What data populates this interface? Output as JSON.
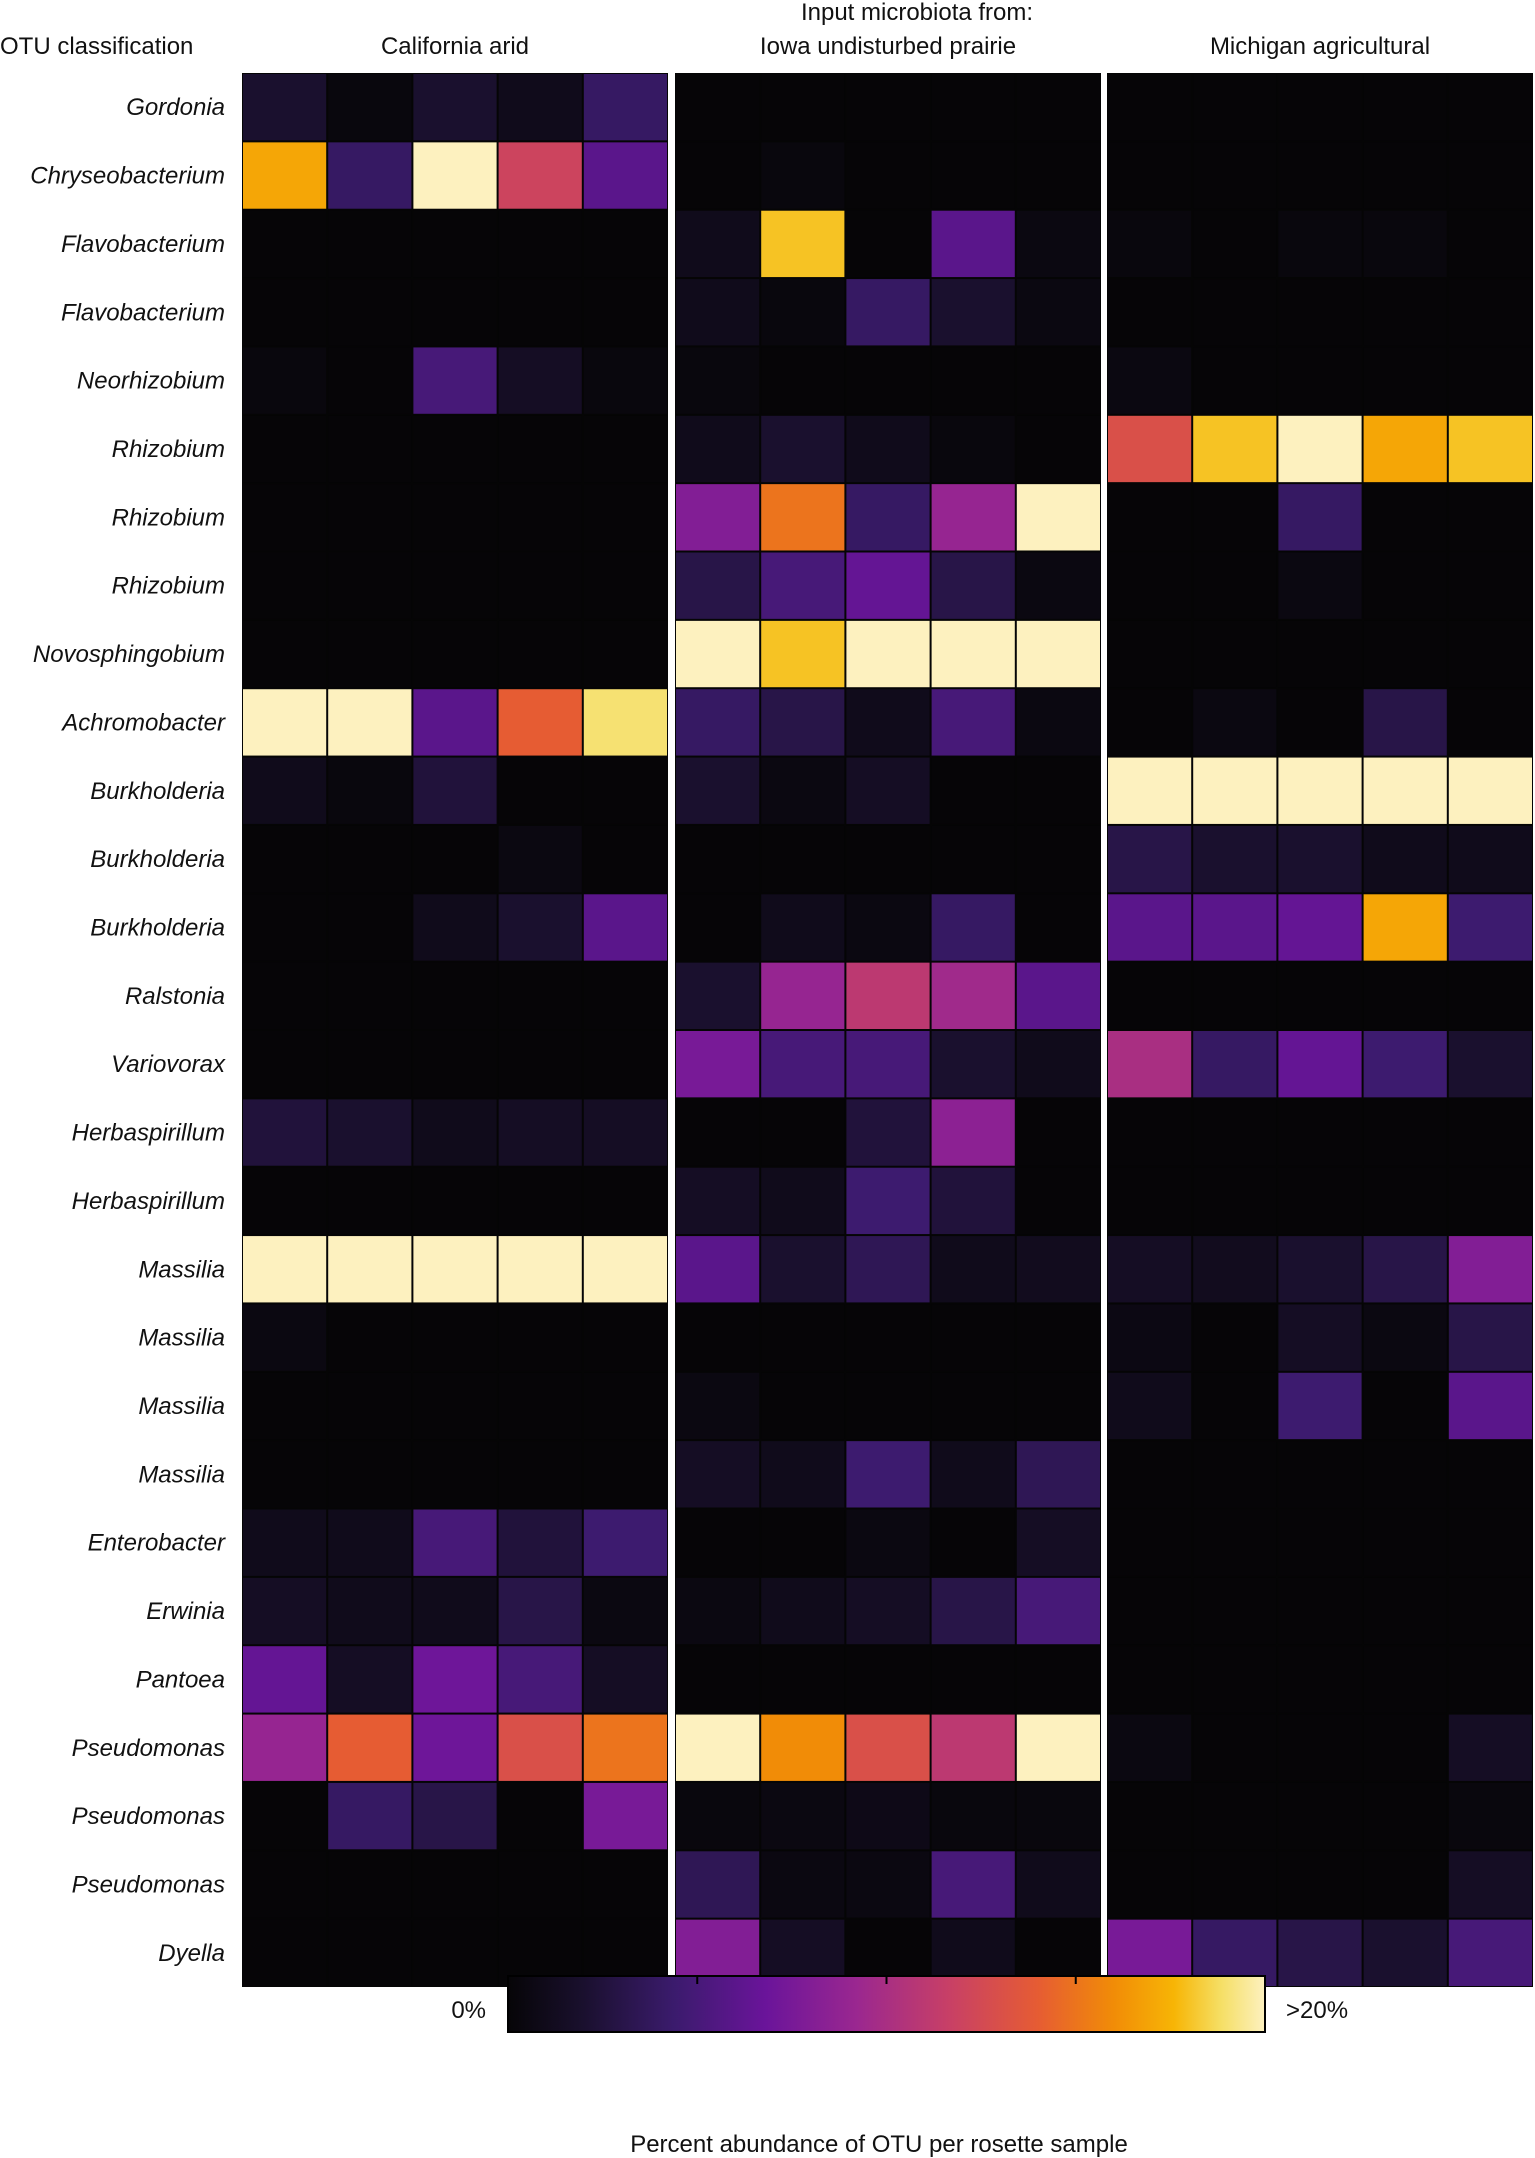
{
  "chart_data": {
    "type": "heatmap",
    "row_header": "OTU classification",
    "panel_superheader": "Input microbiota from:",
    "panels": [
      "California arid",
      "Iowa undisturbed prairie",
      "Michigan agricultural"
    ],
    "samples_per_panel": 5,
    "rows": [
      "Gordonia",
      "Chryseobacterium",
      "Flavobacterium",
      "Flavobacterium",
      "Neorhizobium",
      "Rhizobium",
      "Rhizobium",
      "Rhizobium",
      "Novosphingobium",
      "Achromobacter",
      "Burkholderia",
      "Burkholderia",
      "Burkholderia",
      "Ralstonia",
      "Variovorax",
      "Herbaspirillum",
      "Herbaspirillum",
      "Massilia",
      "Massilia",
      "Massilia",
      "Massilia",
      "Enterobacter",
      "Erwinia",
      "Pantoea",
      "Pseudomonas",
      "Pseudomonas",
      "Pseudomonas",
      "Dyella"
    ],
    "value_unit": "percent",
    "value_max_label": ">20%",
    "value_range": [
      0,
      20
    ],
    "values": [
      [
        [
          2,
          0.3,
          2,
          1,
          4
        ],
        [
          0,
          0,
          0,
          0,
          0
        ],
        [
          0,
          0,
          0,
          0,
          0
        ]
      ],
      [
        [
          17,
          4,
          20,
          12,
          6
        ],
        [
          0,
          0.3,
          0,
          0,
          0
        ],
        [
          0,
          0,
          0,
          0,
          0
        ]
      ],
      [
        [
          0,
          0,
          0,
          0,
          0
        ],
        [
          1,
          18,
          0,
          6,
          0.5
        ],
        [
          0.3,
          0,
          0.3,
          0.3,
          0
        ]
      ],
      [
        [
          0,
          0,
          0,
          0,
          0
        ],
        [
          1,
          0.3,
          4,
          2,
          0.5
        ],
        [
          0,
          0,
          0,
          0,
          0
        ]
      ],
      [
        [
          0.3,
          0,
          5,
          1.5,
          0.3
        ],
        [
          0.3,
          0,
          0,
          0,
          0
        ],
        [
          0.5,
          0,
          0,
          0,
          0
        ]
      ],
      [
        [
          0,
          0,
          0,
          0,
          0
        ],
        [
          1,
          2,
          1,
          0.3,
          0
        ],
        [
          13,
          18,
          20,
          17,
          18
        ]
      ],
      [
        [
          0,
          0,
          0,
          0,
          0
        ],
        [
          8,
          15,
          4,
          9,
          20
        ],
        [
          0,
          0,
          4,
          0,
          0
        ]
      ],
      [
        [
          0,
          0,
          0,
          0,
          0
        ],
        [
          3,
          5,
          6.5,
          3,
          0.5
        ],
        [
          0,
          0,
          0.5,
          0,
          0
        ]
      ],
      [
        [
          0,
          0,
          0,
          0,
          0
        ],
        [
          20,
          18,
          20,
          20,
          20
        ],
        [
          0,
          0,
          0,
          0,
          0
        ]
      ],
      [
        [
          20,
          20,
          6,
          14,
          19
        ],
        [
          4,
          3,
          1,
          5,
          0.5
        ],
        [
          0,
          0.5,
          0,
          3,
          0
        ]
      ],
      [
        [
          1,
          0.3,
          2.5,
          0,
          0
        ],
        [
          2,
          0.5,
          1.5,
          0,
          0
        ],
        [
          20,
          20,
          20,
          20,
          20
        ]
      ],
      [
        [
          0,
          0,
          0,
          0.5,
          0
        ],
        [
          0,
          0,
          0,
          0,
          0
        ],
        [
          3,
          2,
          2,
          1,
          1
        ]
      ],
      [
        [
          0,
          0,
          1,
          2,
          6
        ],
        [
          0,
          1,
          0.5,
          4,
          0
        ],
        [
          6,
          6,
          6.5,
          17,
          4.5
        ]
      ],
      [
        [
          0,
          0,
          0,
          0,
          0
        ],
        [
          2,
          9,
          11,
          9.5,
          6
        ],
        [
          0,
          0,
          0,
          0,
          0
        ]
      ],
      [
        [
          0,
          0,
          0,
          0,
          0
        ],
        [
          7.5,
          5,
          5,
          2,
          1
        ],
        [
          10,
          4,
          6.5,
          4.5,
          2
        ]
      ],
      [
        [
          2.5,
          2,
          1,
          1.5,
          1.5
        ],
        [
          0,
          0,
          2.5,
          8.5,
          0
        ],
        [
          0,
          0,
          0,
          0,
          0
        ]
      ],
      [
        [
          0,
          0,
          0,
          0,
          0
        ],
        [
          1.5,
          1,
          4.5,
          2.5,
          0
        ],
        [
          0,
          0,
          0,
          0,
          0
        ]
      ],
      [
        [
          20,
          20,
          20,
          20,
          20
        ],
        [
          6,
          2,
          3.5,
          1,
          1.2
        ],
        [
          1.5,
          1.2,
          2,
          3,
          8
        ]
      ],
      [
        [
          0.5,
          0,
          0,
          0,
          0
        ],
        [
          0,
          0,
          0,
          0,
          0
        ],
        [
          0.6,
          0,
          1.5,
          0.5,
          3
        ]
      ],
      [
        [
          0,
          0,
          0,
          0,
          0
        ],
        [
          0.5,
          0,
          0,
          0,
          0
        ],
        [
          1,
          0,
          4.5,
          0,
          6
        ]
      ],
      [
        [
          0,
          0,
          0,
          0,
          0
        ],
        [
          1.5,
          1,
          4.5,
          1,
          3.5
        ],
        [
          0,
          0,
          0,
          0,
          0
        ]
      ],
      [
        [
          1,
          1,
          5,
          2.5,
          4.5
        ],
        [
          0,
          0,
          0.5,
          0,
          1.5
        ],
        [
          0,
          0,
          0,
          0,
          0
        ]
      ],
      [
        [
          1.5,
          1,
          1,
          3,
          0.5
        ],
        [
          0.5,
          1,
          1.5,
          3,
          5
        ],
        [
          0,
          0,
          0,
          0,
          0
        ]
      ],
      [
        [
          6.5,
          1.5,
          7,
          5,
          1.5
        ],
        [
          0,
          0,
          0,
          0,
          0
        ],
        [
          0,
          0,
          0,
          0,
          0
        ]
      ],
      [
        [
          9,
          14,
          7,
          13,
          15
        ],
        [
          20,
          16,
          13,
          11,
          20
        ],
        [
          0.5,
          0,
          0,
          0,
          1.5
        ]
      ],
      [
        [
          0,
          4,
          3,
          0,
          7.5
        ],
        [
          0.3,
          0.5,
          0.8,
          0.3,
          0.3
        ],
        [
          0,
          0,
          0,
          0,
          0.3
        ]
      ],
      [
        [
          0,
          0,
          0,
          0,
          0
        ],
        [
          3.5,
          0.5,
          0.5,
          5,
          1
        ],
        [
          0,
          0,
          0,
          0,
          1.5
        ]
      ],
      [
        [
          0,
          0,
          0,
          0,
          0
        ],
        [
          8,
          1.5,
          0,
          1,
          0
        ],
        [
          7.5,
          4,
          3,
          2,
          5
        ]
      ]
    ],
    "colorbar": {
      "min_label": "0%",
      "max_label": ">20%",
      "title": "Percent abundance of OTU per rosette sample"
    }
  }
}
